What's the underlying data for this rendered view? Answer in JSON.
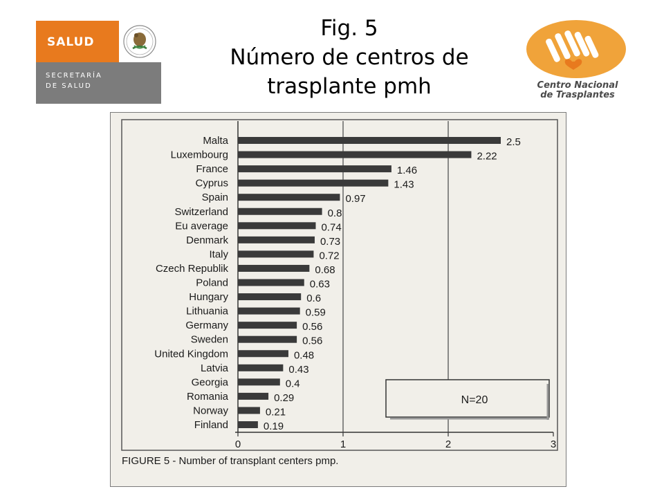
{
  "slide": {
    "title_line1": "Fig. 5",
    "title_line2": "Número de centros de",
    "title_line3": "trasplante pmh"
  },
  "logo_left": {
    "brand": "SALUD",
    "sub_line1": "SECRETARÍA",
    "sub_line2": "DE SALUD",
    "colors": {
      "orange": "#e87a1e",
      "gray": "#7c7c7c"
    }
  },
  "logo_right": {
    "name_line1": "Centro Nacional",
    "name_line2": "de Trasplantes",
    "colors": {
      "orange": "#f0a33a",
      "text": "#4a4a4a"
    }
  },
  "figure": {
    "caption": "FIGURE 5 - Number of transplant centers pmp.",
    "annotation": "N=20"
  },
  "chart_data": {
    "type": "bar",
    "orientation": "horizontal",
    "categories": [
      "Malta",
      "Luxembourg",
      "France",
      "Cyprus",
      "Spain",
      "Switzerland",
      "Eu average",
      "Denmark",
      "Italy",
      "Czech Republik",
      "Poland",
      "Hungary",
      "Lithuania",
      "Germany",
      "Sweden",
      "United Kingdom",
      "Latvia",
      "Georgia",
      "Romania",
      "Norway",
      "Finland"
    ],
    "values": [
      2.5,
      2.22,
      1.46,
      1.43,
      0.97,
      0.8,
      0.74,
      0.73,
      0.72,
      0.68,
      0.63,
      0.6,
      0.59,
      0.56,
      0.56,
      0.48,
      0.43,
      0.4,
      0.29,
      0.21,
      0.19
    ],
    "data_labels": [
      "2.5",
      "2.22",
      "1.46",
      "1.43",
      "0.97",
      "0.8",
      "0.74",
      "0.73",
      "0.72",
      "0.68",
      "0.63",
      "0.6",
      "0.59",
      "0.56",
      "0.56",
      "0.48",
      "0.43",
      "0.4",
      "0.29",
      "0.21",
      "0.19"
    ],
    "xlim": [
      0,
      3
    ],
    "xticks": [
      0,
      1,
      2,
      3
    ],
    "xtick_labels": [
      "0",
      "1",
      "2",
      "3"
    ],
    "vertical_gridlines_at": [
      1,
      2
    ],
    "title": "",
    "xlabel": "",
    "ylabel": "",
    "bar_color": "#3a3a3a"
  }
}
